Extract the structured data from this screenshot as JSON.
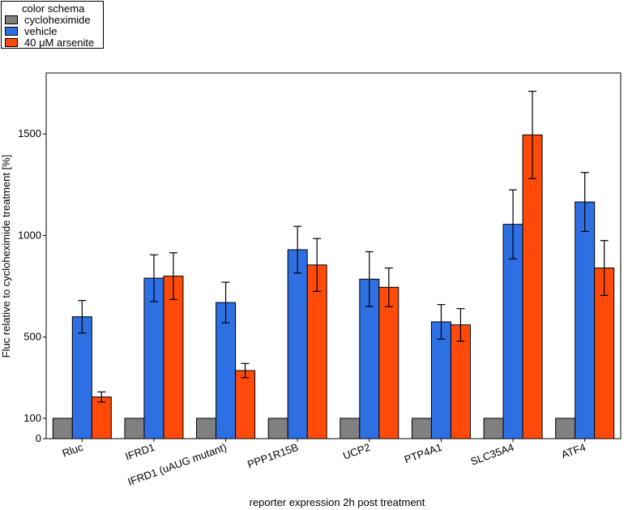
{
  "chart_data": {
    "type": "bar",
    "title": "",
    "xlabel": "reporter expression 2h post treatment",
    "ylabel": "Fluc relative to cycloheximide treatment [%]",
    "ylim": [
      0,
      1800
    ],
    "yticks": [
      0,
      100,
      500,
      1000,
      1500
    ],
    "grid": false,
    "legend_title": "color schema",
    "legend_position": "top-left",
    "categories": [
      "Rluc",
      "IFRD1",
      "IFRD1 (uAUG mutant)",
      "PPP1R15B",
      "UCP2",
      "PTP4A1",
      "SLC35A4",
      "ATF4"
    ],
    "series": [
      {
        "name": "cycloheximide",
        "color": "#808080",
        "values": [
          100,
          100,
          100,
          100,
          100,
          100,
          100,
          100
        ],
        "errors": [
          0,
          0,
          0,
          0,
          0,
          0,
          0,
          0
        ]
      },
      {
        "name": "vehicle",
        "color": "#2f6fe4",
        "values": [
          600,
          790,
          670,
          930,
          785,
          575,
          1055,
          1165
        ],
        "errors": [
          80,
          115,
          100,
          115,
          135,
          85,
          170,
          145
        ]
      },
      {
        "name": "40 μM arsenite",
        "color": "#ff4a0a",
        "values": [
          205,
          800,
          335,
          855,
          745,
          560,
          1495,
          840
        ],
        "errors": [
          25,
          115,
          35,
          130,
          95,
          80,
          215,
          135
        ]
      }
    ]
  }
}
